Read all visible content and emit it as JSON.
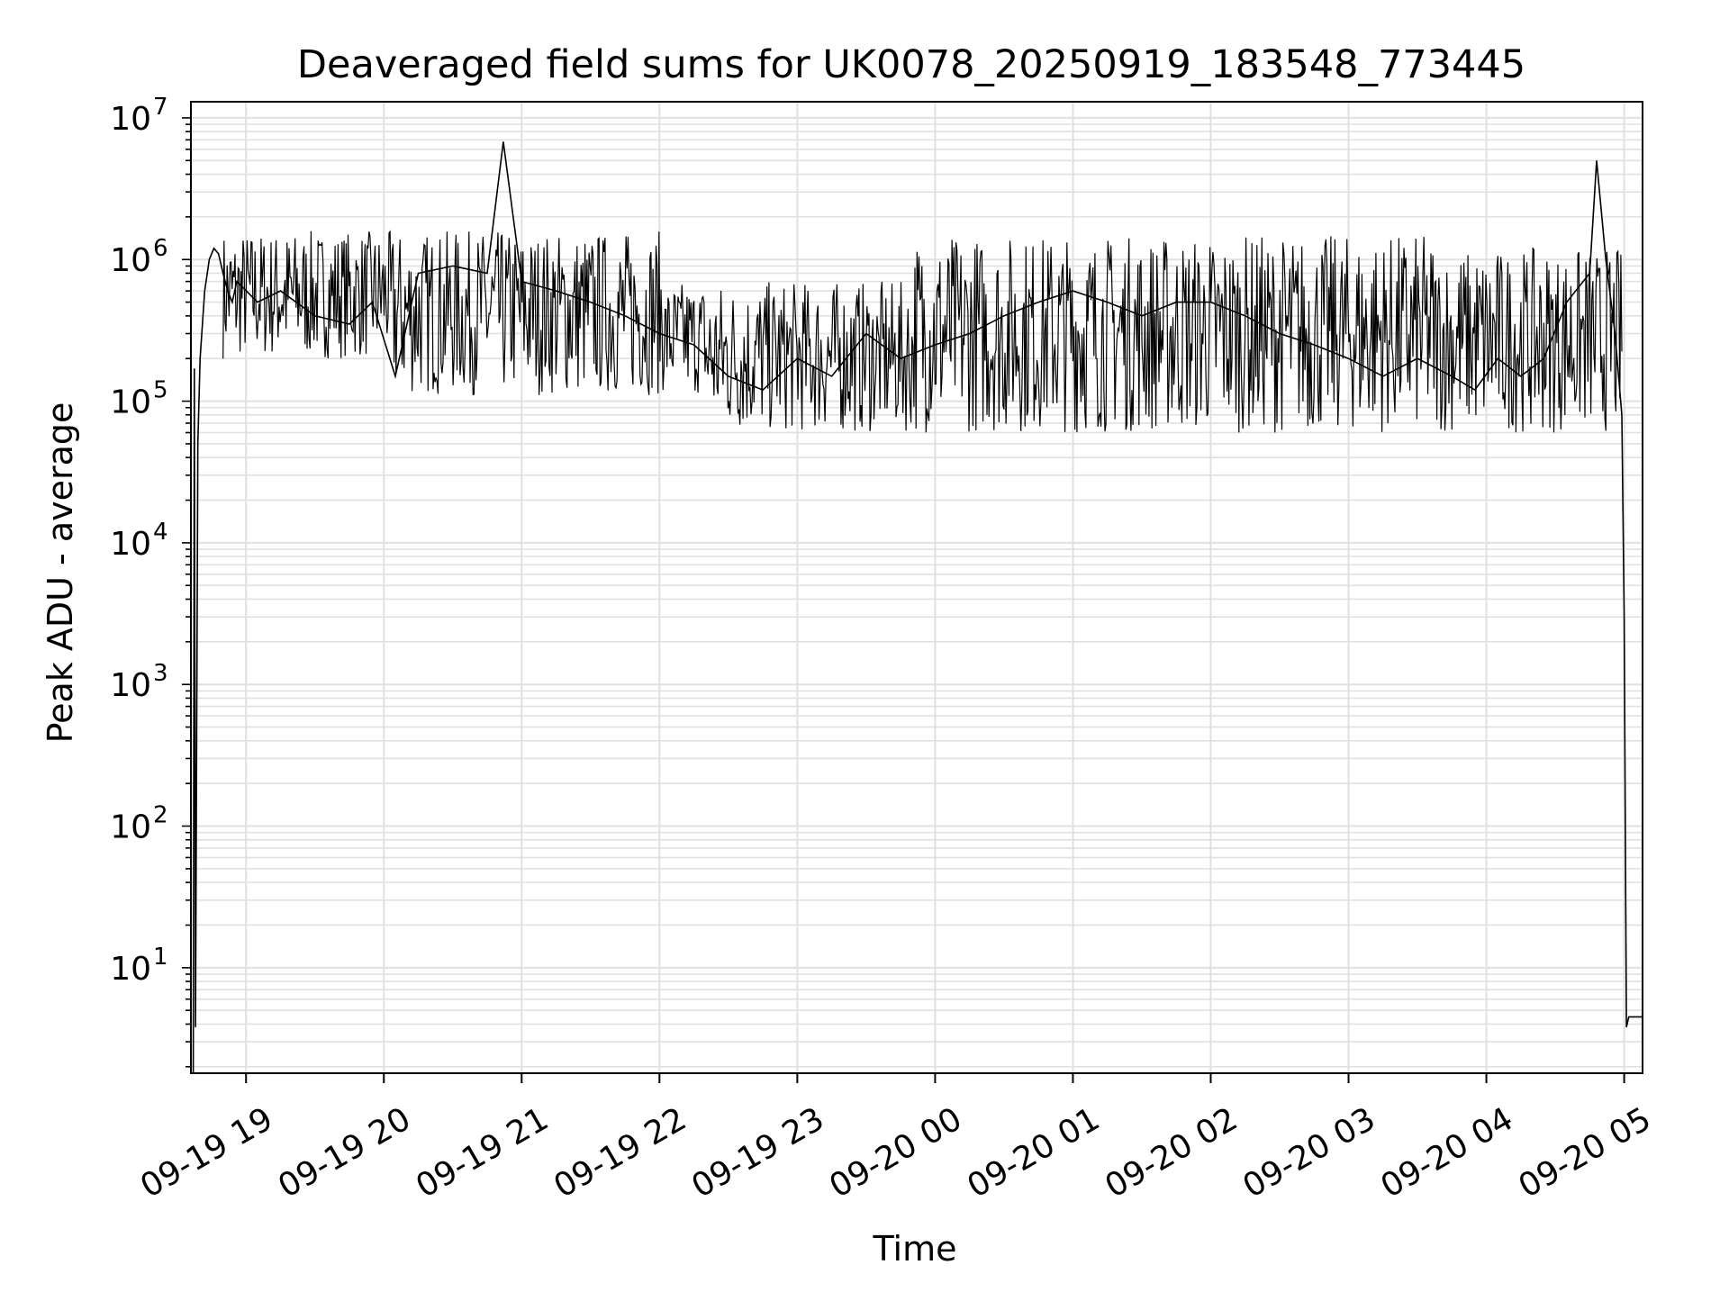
{
  "chart_data": {
    "type": "line",
    "title": "Deaveraged field sums for UK0078_20250919_183548_773445",
    "xlabel": "Time",
    "ylabel": "Peak ADU - average",
    "yscale": "log",
    "ylim": [
      1.8,
      13000000
    ],
    "xlim": [
      "2025-09-19 18:36",
      "2025-09-20 05:08"
    ],
    "grid": true,
    "grid_minor": true,
    "line_color": "#000000",
    "grid_color": "#e0e0e0",
    "x_ticks": [
      "2025-09-19 19:00",
      "2025-09-19 20:00",
      "2025-09-19 21:00",
      "2025-09-19 22:00",
      "2025-09-19 23:00",
      "2025-09-20 00:00",
      "2025-09-20 01:00",
      "2025-09-20 02:00",
      "2025-09-20 03:00",
      "2025-09-20 04:00",
      "2025-09-20 05:00"
    ],
    "x_tick_labels": [
      "09-19 19",
      "09-19 20",
      "09-19 21",
      "09-19 22",
      "09-19 23",
      "09-20 00",
      "09-20 01",
      "09-20 02",
      "09-20 03",
      "09-20 04",
      "09-20 05"
    ],
    "y_ticks": [
      10,
      100,
      1000,
      10000,
      100000,
      1000000,
      10000000
    ],
    "y_tick_labels": [
      {
        "base": "10",
        "exp": "1"
      },
      {
        "base": "10",
        "exp": "2"
      },
      {
        "base": "10",
        "exp": "3"
      },
      {
        "base": "10",
        "exp": "4"
      },
      {
        "base": "10",
        "exp": "5"
      },
      {
        "base": "10",
        "exp": "6"
      },
      {
        "base": "10",
        "exp": "7"
      }
    ],
    "series": [
      {
        "x": [
          "2025-09-19 18:37",
          "2025-09-19 18:37:30",
          "2025-09-19 18:38",
          "2025-09-19 18:39",
          "2025-09-19 18:40",
          "2025-09-19 18:42",
          "2025-09-19 18:44",
          "2025-09-19 18:46",
          "2025-09-19 18:48",
          "2025-09-19 18:50",
          "2025-09-19 18:52",
          "2025-09-19 18:54",
          "2025-09-19 18:56",
          "2025-09-19 18:58",
          "2025-09-19 19:05",
          "2025-09-19 19:15",
          "2025-09-19 19:30",
          "2025-09-19 19:45",
          "2025-09-19 19:55",
          "2025-09-19 20:05",
          "2025-09-19 20:15",
          "2025-09-19 20:30",
          "2025-09-19 20:45",
          "2025-09-19 20:52",
          "2025-09-19 21:00",
          "2025-09-19 21:15",
          "2025-09-19 21:30",
          "2025-09-19 21:45",
          "2025-09-19 22:00",
          "2025-09-19 22:15",
          "2025-09-19 22:30",
          "2025-09-19 22:45",
          "2025-09-19 23:00",
          "2025-09-19 23:15",
          "2025-09-19 23:30",
          "2025-09-19 23:45",
          "2025-09-20 00:00",
          "2025-09-20 00:15",
          "2025-09-20 00:30",
          "2025-09-20 00:45",
          "2025-09-20 01:00",
          "2025-09-20 01:15",
          "2025-09-20 01:30",
          "2025-09-20 01:45",
          "2025-09-20 02:00",
          "2025-09-20 02:15",
          "2025-09-20 02:30",
          "2025-09-20 02:45",
          "2025-09-20 03:00",
          "2025-09-20 03:15",
          "2025-09-20 03:30",
          "2025-09-20 03:45",
          "2025-09-20 03:55",
          "2025-09-20 04:05",
          "2025-09-20 04:15",
          "2025-09-20 04:25",
          "2025-09-20 04:35",
          "2025-09-20 04:45",
          "2025-09-20 04:48",
          "2025-09-20 04:52",
          "2025-09-20 04:56",
          "2025-09-20 04:59",
          "2025-09-20 05:00",
          "2025-09-20 05:01",
          "2025-09-20 05:02",
          "2025-09-20 05:08"
        ],
        "values": [
          1.8,
          170000,
          3.8,
          50000,
          200000,
          600000,
          1000000,
          1200000,
          1100000,
          800000,
          600000,
          500000,
          700000,
          650000,
          500000,
          600000,
          400000,
          350000,
          500000,
          150000,
          800000,
          900000,
          800000,
          6800000,
          700000,
          600000,
          500000,
          400000,
          300000,
          250000,
          150000,
          120000,
          200000,
          150000,
          300000,
          200000,
          250000,
          300000,
          400000,
          500000,
          600000,
          500000,
          400000,
          500000,
          500000,
          400000,
          300000,
          250000,
          200000,
          150000,
          200000,
          150000,
          120000,
          200000,
          150000,
          200000,
          500000,
          800000,
          5000000,
          1000000,
          300000,
          80000,
          3000,
          3.8,
          4.5,
          4.5
        ]
      }
    ],
    "notes_spikes": "Dense rapid fluctuation between roughly 4e4 and 1.8e6 across the observation"
  }
}
